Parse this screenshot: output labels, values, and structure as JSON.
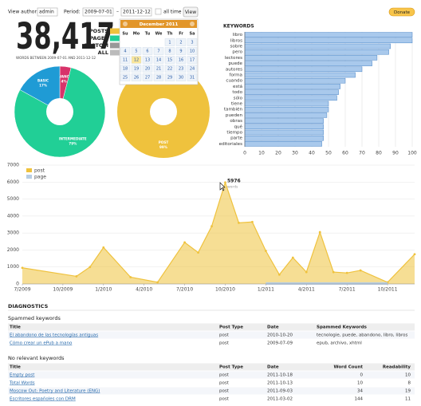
{
  "toolbar": {
    "author_label": "View author:",
    "author": "admin",
    "period_label": "Period:",
    "from": "2009-07-01",
    "dash": "–",
    "to": "2011-12-12",
    "all_time": "all time",
    "view": "View",
    "donate": "Donate"
  },
  "summary": {
    "total": "38,417",
    "caption": "WORDS BETWEEN 2009-07-01 AND 2011-12-12",
    "types": [
      "POSTS",
      "PAGES",
      "CUSTOM",
      "ALL"
    ]
  },
  "calendar": {
    "month": "December 2011",
    "weekdays": [
      "Su",
      "Mo",
      "Tu",
      "We",
      "Th",
      "Fr",
      "Sa"
    ],
    "weeks": [
      [
        null,
        null,
        null,
        null,
        1,
        2,
        3
      ],
      [
        4,
        5,
        6,
        7,
        8,
        9,
        10
      ],
      [
        11,
        12,
        13,
        14,
        15,
        16,
        17
      ],
      [
        18,
        19,
        20,
        21,
        22,
        23,
        24
      ],
      [
        25,
        26,
        27,
        28,
        29,
        30,
        31
      ]
    ]
  },
  "charts": [
    {
      "type": "pie",
      "categories": [
        "ADVANCED",
        "INTERMEDIATE",
        "BASIC"
      ],
      "values": [
        4,
        79,
        17
      ],
      "value_labels": [
        "4%",
        "79%",
        "17%"
      ],
      "colors": [
        "#d8336a",
        "#21cf96",
        "#1f9bd5"
      ]
    },
    {
      "type": "pie",
      "categories": [
        "POST"
      ],
      "values": [
        99
      ],
      "value_labels": [
        "99%"
      ],
      "colors": [
        "#efc23d"
      ]
    },
    {
      "type": "hbar",
      "title": "KEYWORDS",
      "categories": [
        "libro",
        "libros",
        "sobre",
        "pero",
        "lectores",
        "puede",
        "autores",
        "forma",
        "cuando",
        "está",
        "todo",
        "sólo",
        "tiene",
        "también",
        "pueden",
        "obras",
        "qué",
        "tiempo",
        "parte",
        "editoriales"
      ],
      "values": [
        100,
        100,
        87,
        86,
        79,
        76,
        70,
        66,
        60,
        57,
        56,
        55,
        50,
        50,
        49,
        47,
        47,
        47,
        47,
        46
      ],
      "color": "#a9c9ec",
      "xlim": [
        0,
        100
      ],
      "xticks": [
        0,
        10,
        20,
        30,
        40,
        50,
        60,
        70,
        80,
        90,
        100
      ],
      "grid": true
    },
    {
      "type": "area",
      "x": [
        "2009-07",
        "2009-11",
        "2009-12",
        "2010-01",
        "2010-03",
        "2010-05",
        "2010-07",
        "2010-08",
        "2010-09",
        "2010-10",
        "2010-11",
        "2010-12",
        "2011-01",
        "2011-02",
        "2011-03",
        "2011-04",
        "2011-05",
        "2011-06",
        "2011-07",
        "2011-08",
        "2011-10",
        "2011-12"
      ],
      "series": [
        {
          "name": "post",
          "color": "#efc23d",
          "values": [
            950,
            450,
            1000,
            2150,
            400,
            100,
            2450,
            1850,
            3400,
            5976,
            3600,
            3650,
            1950,
            550,
            1550,
            700,
            3050,
            700,
            650,
            800,
            100,
            1750
          ]
        },
        {
          "name": "page",
          "color": "#b7cde3",
          "values": [
            null,
            null,
            null,
            null,
            null,
            null,
            null,
            null,
            null,
            null,
            null,
            null,
            30,
            30,
            30,
            30,
            30,
            30,
            30,
            30,
            30,
            null
          ]
        }
      ],
      "xlim": [
        "2009-07",
        "2011-12"
      ],
      "xticks": [
        {
          "value": "2009-07",
          "label": "7/2009"
        },
        {
          "value": "2009-10",
          "label": "10/2009"
        },
        {
          "value": "2010-01",
          "label": "1/2010"
        },
        {
          "value": "2010-04",
          "label": "4/2010"
        },
        {
          "value": "2010-07",
          "label": "7/2010"
        },
        {
          "value": "2010-10",
          "label": "10/2010"
        },
        {
          "value": "2011-01",
          "label": "1/2011"
        },
        {
          "value": "2011-04",
          "label": "4/2011"
        },
        {
          "value": "2011-07",
          "label": "7/2011"
        },
        {
          "value": "2011-10",
          "label": "10/2011"
        }
      ],
      "ylim": [
        0,
        7000
      ],
      "yticks": [
        0,
        1000,
        2000,
        3000,
        4000,
        5000,
        6000,
        7000
      ],
      "grid": true,
      "tooltip": {
        "value": "5976",
        "label": "words"
      }
    }
  ],
  "diagnostics": {
    "title": "DIAGNOSTICS",
    "tables": [
      {
        "title": "Spammed keywords",
        "columns": [
          "Title",
          "Post Type",
          "Date",
          "Spammed Keywords"
        ],
        "rows": [
          [
            "El abandono de las tecnologías antiguas",
            "post",
            "2010-10-20",
            "tecnologie, puede, abandono, libro, libros"
          ],
          [
            "Cómo crear un ePub a mano",
            "post",
            "2009-07-09",
            "epub, archivo, xhtml"
          ]
        ]
      },
      {
        "title": "No relevant keywords",
        "columns": [
          "Title",
          "Post Type",
          "Date",
          "Word Count",
          "Readability"
        ],
        "rows": [
          [
            "Empty post",
            "post",
            "2011-10-18",
            0,
            10
          ],
          [
            "Total Words",
            "post",
            "2011-10-13",
            10,
            8
          ],
          [
            "Moscow Out: Poetry and Literature (ENG)",
            "post",
            "2011-09-03",
            34,
            19
          ],
          [
            "Escritores españoles con DRM",
            "post",
            "2011-03-02",
            144,
            11
          ]
        ]
      }
    ]
  }
}
